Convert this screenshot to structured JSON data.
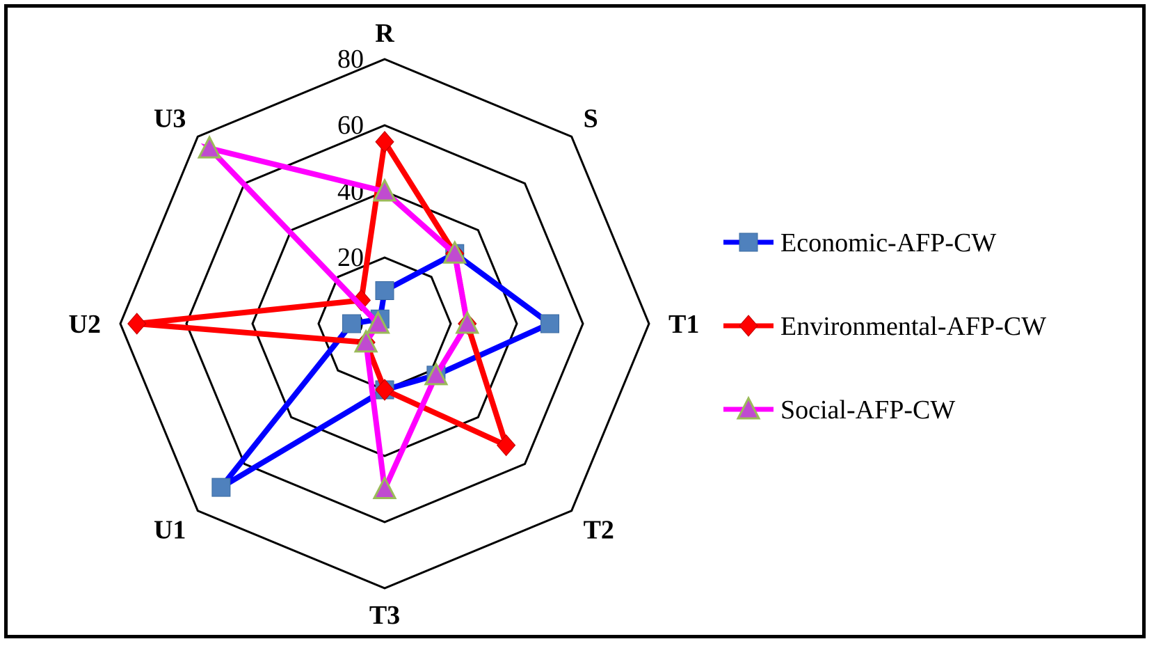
{
  "chart_data": {
    "type": "radar",
    "categories": [
      "R",
      "S",
      "T1",
      "T2",
      "T3",
      "U1",
      "U2",
      "U3"
    ],
    "rlim": [
      0,
      80
    ],
    "rticks": [
      0,
      20,
      40,
      60,
      80
    ],
    "grid": true,
    "legend_position": "right",
    "series": [
      {
        "name": "Economic-AFP-CW",
        "color": "#0000ff",
        "marker": "square",
        "marker_color": "#4f81bd",
        "values": [
          10,
          30,
          50,
          22,
          20,
          70,
          10,
          2
        ]
      },
      {
        "name": "Environmental-AFP-CW",
        "color": "#ff0000",
        "marker": "diamond",
        "marker_color": "#ff0000",
        "values": [
          55,
          30,
          25,
          52,
          20,
          8,
          75,
          10
        ]
      },
      {
        "name": "Social-AFP-CW",
        "color": "#ff00ff",
        "marker": "triangle",
        "marker_color": "#c04bd0",
        "values": [
          40,
          30,
          25,
          22,
          50,
          8,
          2,
          75
        ]
      }
    ]
  }
}
